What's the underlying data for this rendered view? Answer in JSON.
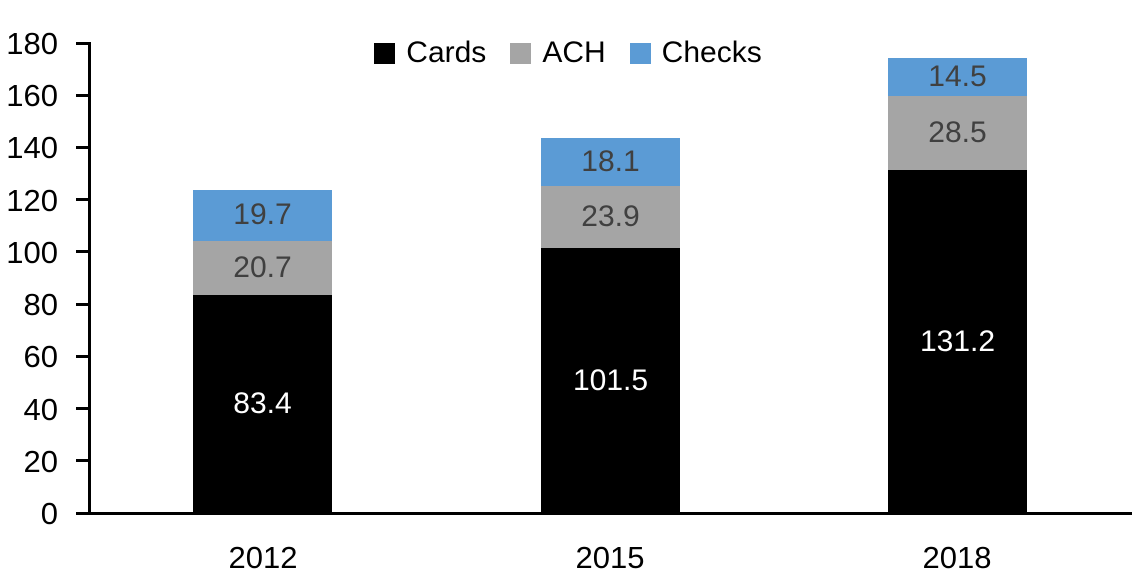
{
  "chart_data": {
    "type": "bar",
    "stacked": true,
    "title": "",
    "categories": [
      "2012",
      "2015",
      "2018"
    ],
    "series": [
      {
        "name": "Cards",
        "color": "#000000",
        "label_color": "#ffffff",
        "values": [
          83.4,
          101.5,
          131.2
        ]
      },
      {
        "name": "ACH",
        "color": "#A5A5A5",
        "label_color": "#404040",
        "values": [
          20.7,
          23.9,
          28.5
        ]
      },
      {
        "name": "Checks",
        "color": "#5B9BD5",
        "label_color": "#404040",
        "values": [
          19.7,
          18.1,
          14.5
        ]
      }
    ],
    "totals": [
      123.8,
      143.5,
      174.2
    ],
    "ylim": [
      0,
      180
    ],
    "yticks": [
      0,
      20,
      40,
      60,
      80,
      100,
      120,
      140,
      160,
      180
    ],
    "ytick_step": 20,
    "grid": false,
    "legend_position": "top",
    "axis_color": "#000000",
    "data_labels": true
  }
}
